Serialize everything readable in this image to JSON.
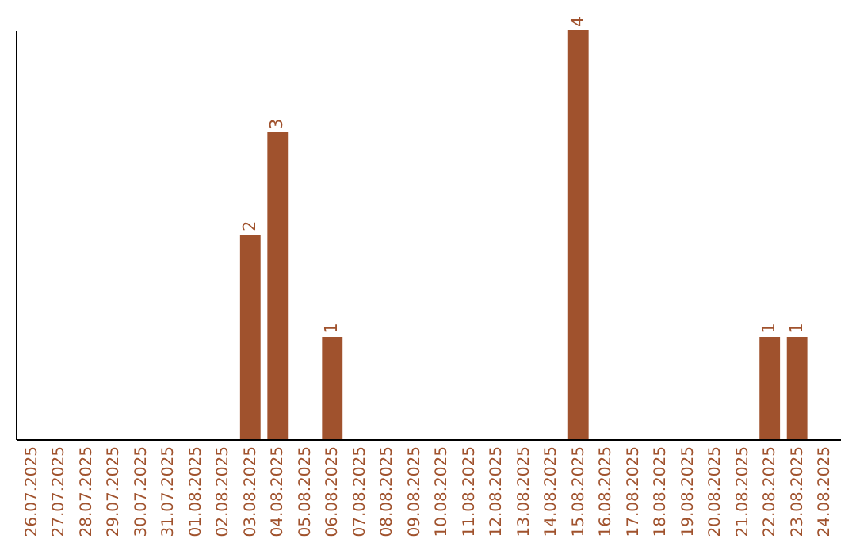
{
  "chart_data": {
    "type": "bar",
    "categories": [
      "26.07.2025",
      "27.07.2025",
      "28.07.2025",
      "29.07.2025",
      "30.07.2025",
      "31.07.2025",
      "01.08.2025",
      "02.08.2025",
      "03.08.2025",
      "04.08.2025",
      "05.08.2025",
      "06.08.2025",
      "07.08.2025",
      "08.08.2025",
      "09.08.2025",
      "10.08.2025",
      "11.08.2025",
      "12.08.2025",
      "13.08.2025",
      "14.08.2025",
      "15.08.2025",
      "16.08.2025",
      "17.08.2025",
      "18.08.2025",
      "19.08.2025",
      "20.08.2025",
      "21.08.2025",
      "22.08.2025",
      "23.08.2025",
      "24.08.2025"
    ],
    "values": [
      0,
      0,
      0,
      0,
      0,
      0,
      0,
      0,
      2,
      3,
      0,
      1,
      0,
      0,
      0,
      0,
      0,
      0,
      0,
      0,
      4,
      0,
      0,
      0,
      0,
      0,
      0,
      1,
      1,
      0
    ],
    "value_labels": [
      null,
      null,
      null,
      null,
      null,
      null,
      null,
      null,
      "2",
      "3",
      null,
      "1",
      null,
      null,
      null,
      null,
      null,
      null,
      null,
      null,
      "4",
      null,
      null,
      null,
      null,
      null,
      null,
      "1",
      "1",
      null
    ],
    "color": "#a0522d",
    "tick_labels": "x",
    "grid": false
  }
}
